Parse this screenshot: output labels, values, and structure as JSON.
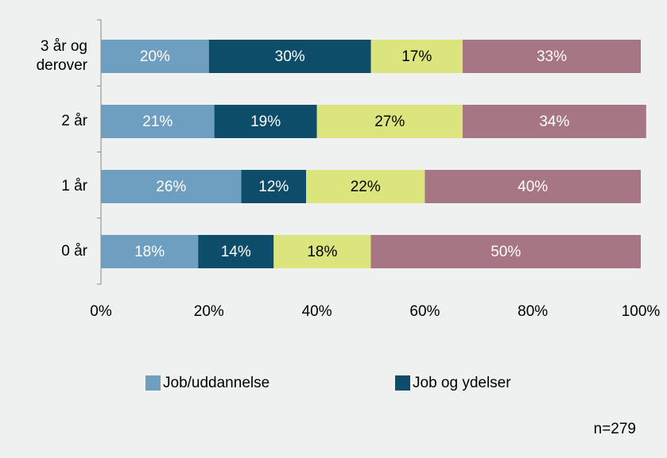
{
  "chart_data": {
    "type": "stacked_barh",
    "categories": [
      "3 år og derover",
      "2 år",
      "1 år",
      "0 år"
    ],
    "series": [
      {
        "name": "Job/uddannelse",
        "color": "#6f9fc0",
        "label_color": "#ffffff",
        "values": [
          20,
          21,
          26,
          18
        ],
        "value_labels": [
          "20%",
          "21%",
          "26%",
          "18%"
        ]
      },
      {
        "name": "Job og ydelser",
        "color": "#0d4d6a",
        "label_color": "#ffffff",
        "values": [
          30,
          19,
          12,
          14
        ],
        "value_labels": [
          "30%",
          "19%",
          "12%",
          "14%"
        ]
      },
      {
        "color": "#dce57d",
        "label_color": "#000000",
        "values": [
          17,
          27,
          22,
          18
        ],
        "value_labels": [
          "17%",
          "27%",
          "22%",
          "18%"
        ]
      },
      {
        "color": "#a67684",
        "label_color": "#ffffff",
        "values": [
          33,
          34,
          40,
          50
        ],
        "value_labels": [
          "33%",
          "34%",
          "40%",
          "50%"
        ]
      }
    ],
    "xlim": [
      0,
      100
    ],
    "xticks": [
      {
        "value": 0,
        "label": "0%"
      },
      {
        "value": 20,
        "label": "20%"
      },
      {
        "value": 40,
        "label": "40%"
      },
      {
        "value": 60,
        "label": "60%"
      },
      {
        "value": 80,
        "label": "80%"
      },
      {
        "value": 100,
        "label": "100%"
      }
    ],
    "annotation": "n=279"
  }
}
